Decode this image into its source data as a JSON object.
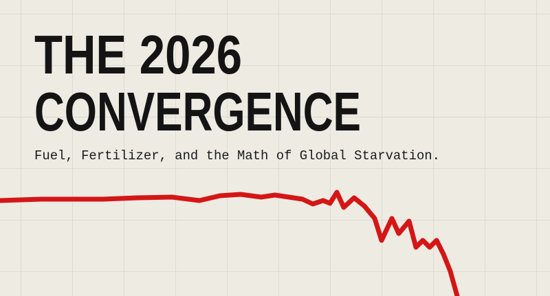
{
  "title_lines": [
    "THE 2026",
    "CONVERGENCE"
  ],
  "subtitle": "Fuel, Fertilizer, and the Math of Global Starvation."
}
